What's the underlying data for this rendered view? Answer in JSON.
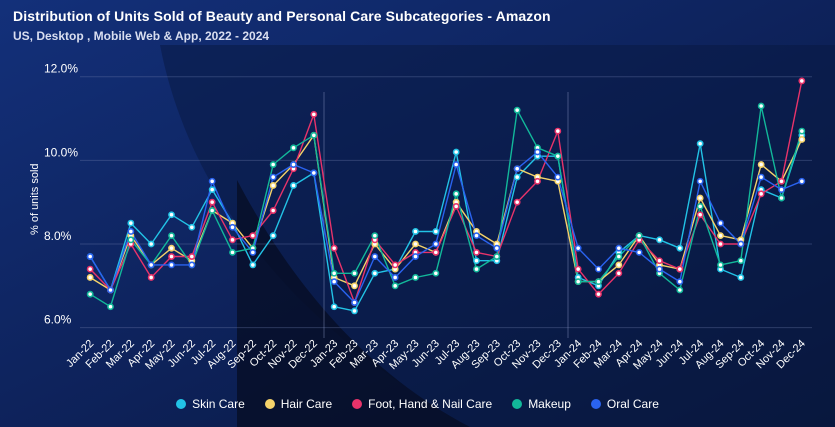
{
  "header": {
    "title": "Distribution of Units Sold of Beauty and Personal Care Subcategories - Amazon",
    "subtitle": "US, Desktop , Mobile Web & App, 2022 - 2024"
  },
  "chart_data": {
    "type": "line",
    "title": "Distribution of Units Sold of Beauty and Personal Care Subcategories - Amazon",
    "subtitle": "US, Desktop , Mobile Web & App, 2022 - 2024",
    "xlabel": "",
    "ylabel": "% of units sold",
    "ylim": [
      5.8,
      12.4
    ],
    "yticks": [
      6.0,
      8.0,
      10.0,
      12.0
    ],
    "ytick_labels": [
      "6.0%",
      "8.0%",
      "10.0%",
      "12.0%"
    ],
    "grid": true,
    "legend_position": "bottom",
    "year_dividers_after": [
      "Dec-22",
      "Dec-23"
    ],
    "categories": [
      "Jan-22",
      "Feb-22",
      "Mar-22",
      "Apr-22",
      "May-22",
      "Jun-22",
      "Jul-22",
      "Aug-22",
      "Sep-22",
      "Oct-22",
      "Nov-22",
      "Dec-22",
      "Jan-23",
      "Feb-23",
      "Mar-23",
      "Apr-23",
      "May-23",
      "Jun-23",
      "Jul-23",
      "Aug-23",
      "Sep-23",
      "Oct-23",
      "Nov-23",
      "Dec-23",
      "Jan-24",
      "Feb-24",
      "Mar-24",
      "Apr-24",
      "May-24",
      "Jun-24",
      "Jul-24",
      "Aug-24",
      "Sep-24",
      "Oct-24",
      "Nov-24",
      "Dec-24"
    ],
    "series": [
      {
        "name": "Skin Care",
        "color": "#22c3e6",
        "values": [
          7.7,
          6.9,
          8.5,
          8.0,
          8.7,
          8.4,
          9.3,
          8.5,
          7.5,
          8.2,
          9.4,
          9.7,
          6.5,
          6.4,
          7.3,
          7.4,
          8.3,
          8.3,
          10.2,
          7.6,
          7.6,
          9.6,
          10.1,
          10.1,
          7.2,
          7.0,
          7.8,
          8.2,
          8.1,
          7.9,
          10.4,
          7.4,
          7.2,
          9.3,
          9.1,
          10.6
        ]
      },
      {
        "name": "Hair Care",
        "color": "#f5d36a",
        "values": [
          7.2,
          6.9,
          8.2,
          7.5,
          7.9,
          7.6,
          8.8,
          8.5,
          7.9,
          9.4,
          9.9,
          10.6,
          7.2,
          7.0,
          8.0,
          7.4,
          8.0,
          7.8,
          9.0,
          8.3,
          8.0,
          9.8,
          9.6,
          9.5,
          7.1,
          7.1,
          7.5,
          8.2,
          7.5,
          7.4,
          9.1,
          8.2,
          8.1,
          9.9,
          9.5,
          10.5
        ]
      },
      {
        "name": "Foot, Hand & Nail Care",
        "color": "#e8336a",
        "values": [
          7.4,
          6.9,
          8.0,
          7.2,
          7.7,
          7.7,
          9.0,
          8.1,
          8.2,
          8.8,
          9.8,
          11.1,
          7.9,
          6.6,
          8.1,
          7.5,
          7.8,
          7.8,
          8.9,
          7.8,
          7.7,
          9.0,
          9.5,
          10.7,
          7.4,
          6.8,
          7.3,
          8.1,
          7.6,
          7.4,
          8.7,
          8.0,
          8.0,
          9.2,
          9.5,
          11.9
        ]
      },
      {
        "name": "Makeup",
        "color": "#12b89a",
        "values": [
          6.8,
          6.5,
          8.1,
          7.5,
          8.2,
          7.5,
          8.8,
          7.8,
          7.9,
          9.9,
          10.3,
          10.6,
          7.3,
          7.3,
          8.2,
          7.0,
          7.2,
          7.3,
          9.2,
          7.4,
          7.7,
          11.2,
          10.3,
          10.1,
          7.1,
          7.1,
          7.7,
          8.2,
          7.3,
          6.9,
          8.9,
          7.5,
          7.6,
          11.3,
          9.1,
          10.7
        ]
      },
      {
        "name": "Oral Care",
        "color": "#2a63f0",
        "values": [
          7.7,
          6.9,
          8.3,
          7.5,
          7.5,
          7.5,
          9.5,
          8.4,
          7.8,
          9.6,
          9.9,
          9.7,
          7.1,
          6.6,
          7.7,
          7.2,
          7.7,
          8.0,
          9.9,
          8.2,
          7.9,
          9.8,
          10.2,
          9.6,
          7.9,
          7.4,
          7.9,
          7.8,
          7.4,
          7.1,
          9.5,
          8.5,
          8.0,
          9.6,
          9.3,
          9.5
        ]
      }
    ]
  }
}
